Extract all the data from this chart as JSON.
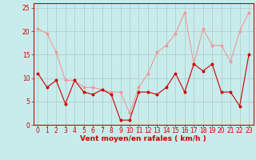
{
  "title": "",
  "xlabel": "Vent moyen/en rafales ( km/h )",
  "background_color": "#c8ecec",
  "grid_color": "#b0c8c8",
  "x_values": [
    0,
    1,
    2,
    3,
    4,
    5,
    6,
    7,
    8,
    9,
    10,
    11,
    12,
    13,
    14,
    15,
    16,
    17,
    18,
    19,
    20,
    21,
    22,
    23
  ],
  "wind_avg": [
    11,
    8,
    9.5,
    4.5,
    9.5,
    7,
    6.5,
    7.5,
    6.5,
    1,
    1,
    7,
    7,
    6.5,
    8,
    11,
    7,
    13,
    11.5,
    13,
    7,
    7,
    4,
    15
  ],
  "wind_gust": [
    20.5,
    19.5,
    15.5,
    9.5,
    9.5,
    8,
    8,
    7.5,
    7,
    7,
    2.5,
    8,
    11,
    15.5,
    17,
    19.5,
    24,
    13,
    20.5,
    17,
    17,
    13.5,
    20,
    24
  ],
  "wind_avg_color": "#cc0000",
  "wind_gust_color": "#ee9999",
  "ylim": [
    0,
    26
  ],
  "yticks": [
    0,
    5,
    10,
    15,
    20,
    25
  ],
  "xlim": [
    -0.5,
    23.5
  ],
  "tick_fontsize": 5.5,
  "xlabel_fontsize": 6.5
}
